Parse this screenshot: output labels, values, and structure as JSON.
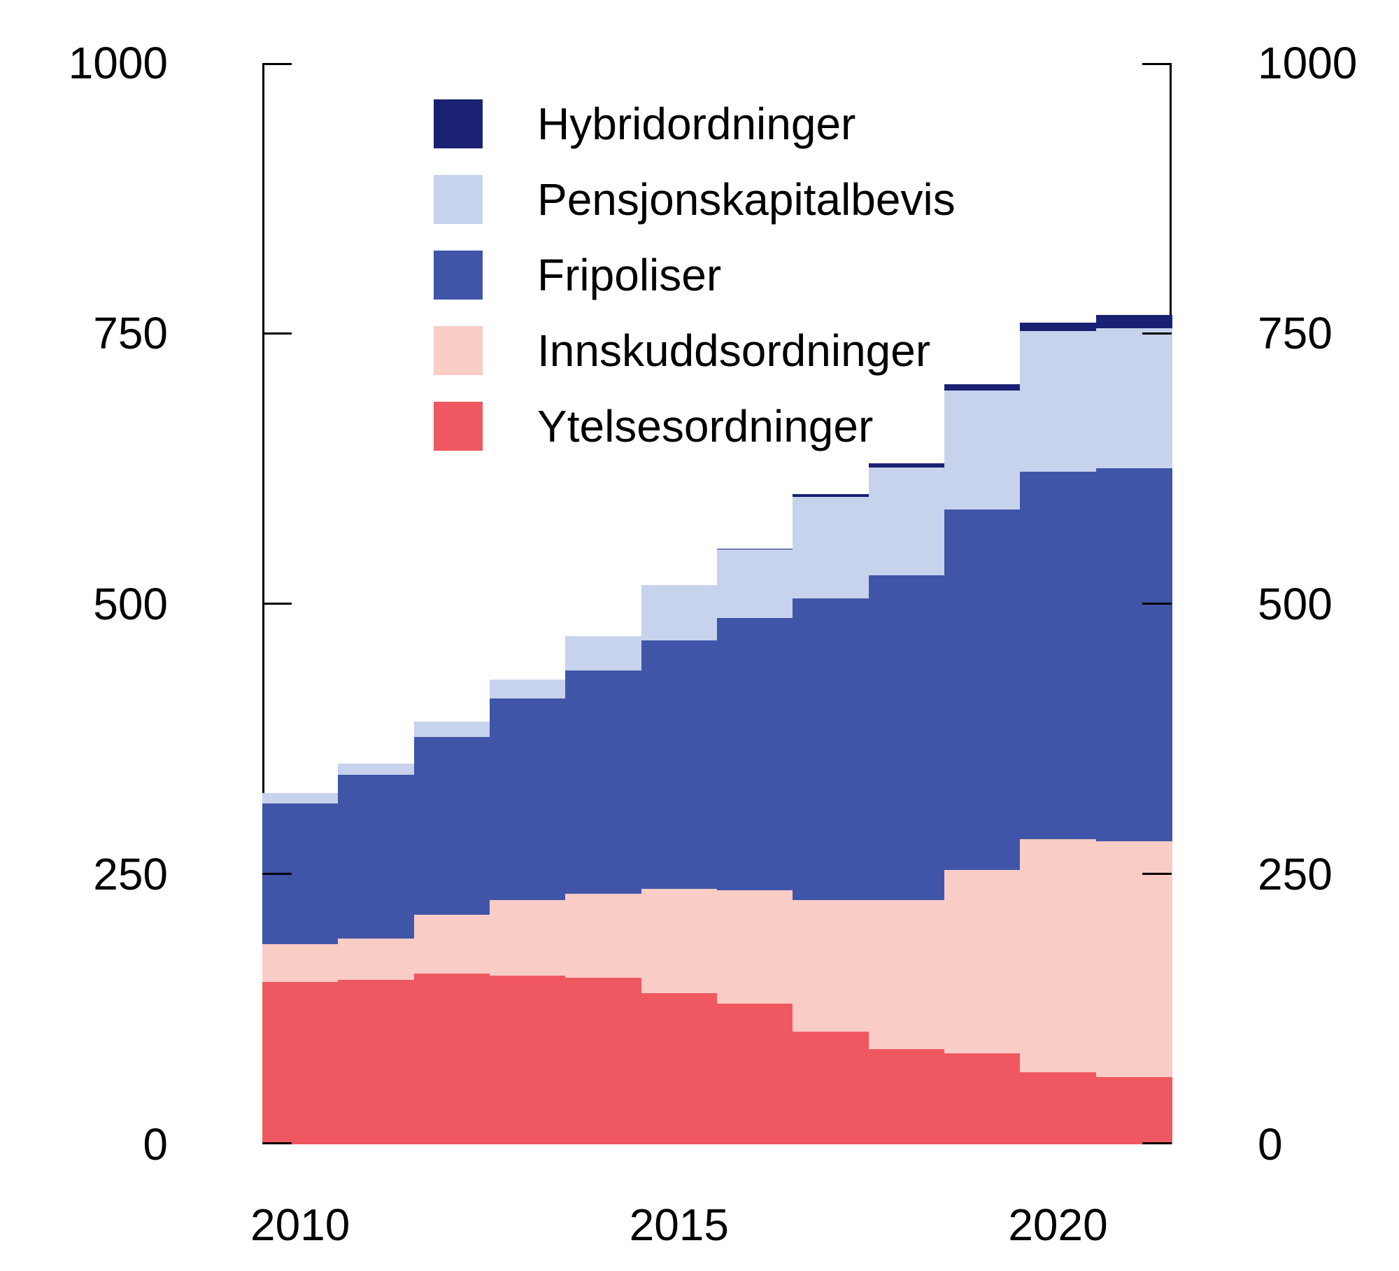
{
  "figure": {
    "background": "#ffffff",
    "axis_color": "#000000",
    "text_color": "#000000"
  },
  "chart_data": {
    "type": "bar",
    "stacked": true,
    "title": "",
    "xlabel": "",
    "ylabel": "",
    "x": [
      2010,
      2011,
      2012,
      2013,
      2014,
      2015,
      2016,
      2017,
      2018,
      2019,
      2020,
      2021
    ],
    "series": [
      {
        "name": "Ytelsesordninger",
        "color": "#ef5860",
        "values": [
          150,
          152,
          158,
          156,
          154,
          140,
          130,
          104,
          88,
          84,
          67,
          62
        ]
      },
      {
        "name": "Innskuddsordninger",
        "color": "#f9ccc5",
        "values": [
          35,
          38,
          54,
          70,
          78,
          96,
          105,
          122,
          138,
          170,
          215,
          218
        ]
      },
      {
        "name": "Fripoliser",
        "color": "#4055a8",
        "values": [
          130,
          152,
          165,
          186,
          206,
          230,
          252,
          279,
          300,
          333,
          340,
          345
        ]
      },
      {
        "name": "Pensjonskapitalbevis",
        "color": "#c7d3ed",
        "values": [
          10,
          10,
          14,
          18,
          32,
          51,
          63,
          94,
          100,
          110,
          130,
          130
        ]
      },
      {
        "name": "Hybridordninger",
        "color": "#1a2172",
        "values": [
          0,
          0,
          0,
          0,
          0,
          0,
          1,
          2,
          4,
          6,
          8,
          12
        ]
      }
    ],
    "legend_order": [
      "Hybridordninger",
      "Pensjonskapitalbevis",
      "Fripoliser",
      "Innskuddsordninger",
      "Ytelsesordninger"
    ],
    "ylim": [
      0,
      1000
    ],
    "yticks": [
      1000,
      750,
      500,
      250,
      0
    ],
    "xticks": [
      2010,
      2015,
      2020
    ],
    "grid": false,
    "legend_position": "upper-left-inside"
  }
}
